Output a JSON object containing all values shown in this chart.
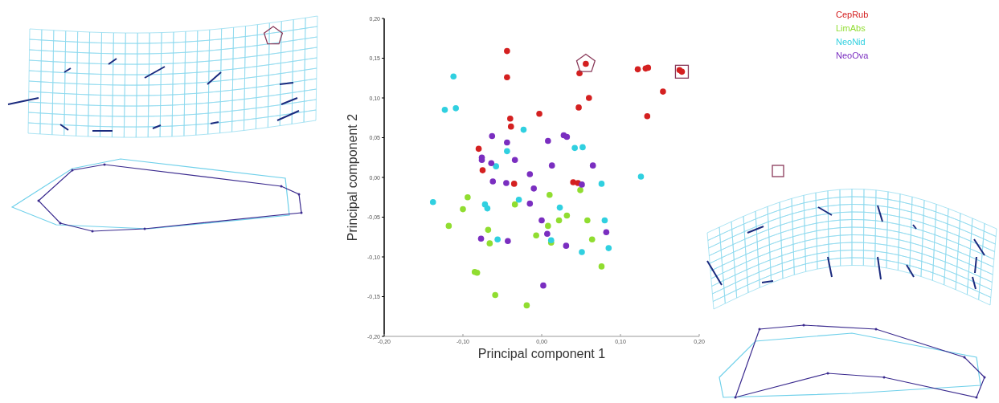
{
  "chart_data": {
    "type": "scatter",
    "xlabel": "Principal component 1",
    "ylabel": "Principal component 2",
    "xlim": [
      -0.2,
      0.2
    ],
    "ylim": [
      -0.2,
      0.2
    ],
    "xticks": [
      {
        "value": -0.2,
        "label": "-0,20"
      },
      {
        "value": -0.1,
        "label": "-0,10"
      },
      {
        "value": 0,
        "label": "0,00"
      },
      {
        "value": 0.1,
        "label": "0,10"
      },
      {
        "value": 0.2,
        "label": "0,20"
      }
    ],
    "yticks": [
      {
        "value": -0.2,
        "label": "-0,20"
      },
      {
        "value": -0.15,
        "label": "-0,15"
      },
      {
        "value": -0.1,
        "label": "-0,10"
      },
      {
        "value": -0.05,
        "label": "-0,05"
      },
      {
        "value": 0,
        "label": "0,00"
      },
      {
        "value": 0.05,
        "label": "0,05"
      },
      {
        "value": 0.1,
        "label": "0,10"
      },
      {
        "value": 0.15,
        "label": "0,15"
      },
      {
        "value": 0.2,
        "label": "0,20"
      }
    ],
    "grid": false,
    "legend": "top right",
    "marker": "circle",
    "series": [
      {
        "name": "CepRub",
        "color": "#d42020",
        "x": [
          0.056,
          0.178,
          -0.044,
          -0.044,
          0.048,
          0.122,
          0.132,
          0.135,
          0.175,
          0.154,
          0.06,
          0.047,
          0.134,
          -0.003,
          -0.04,
          -0.039,
          -0.08,
          -0.075,
          -0.035,
          0.04,
          0.046
        ],
        "values": [
          0.143,
          0.133,
          0.159,
          0.126,
          0.131,
          0.136,
          0.137,
          0.138,
          0.135,
          0.108,
          0.1,
          0.088,
          0.077,
          0.08,
          0.074,
          0.064,
          0.036,
          0.009,
          -0.008,
          -0.006,
          -0.007
        ]
      },
      {
        "name": "LimAbs",
        "color": "#90dd30",
        "x": [
          -0.094,
          -0.1,
          -0.118,
          -0.068,
          -0.066,
          -0.034,
          0.01,
          0.049,
          0.008,
          0.022,
          0.032,
          0.058,
          -0.007,
          0.012,
          0.064,
          0.076,
          -0.085,
          -0.082,
          -0.059,
          -0.019
        ],
        "values": [
          -0.025,
          -0.04,
          -0.061,
          -0.066,
          -0.083,
          -0.034,
          -0.022,
          -0.016,
          -0.061,
          -0.054,
          -0.048,
          -0.054,
          -0.073,
          -0.082,
          -0.078,
          -0.112,
          -0.119,
          -0.12,
          -0.148,
          -0.161
        ]
      },
      {
        "name": "NeoNid",
        "color": "#30d0e0",
        "x": [
          -0.112,
          -0.123,
          -0.109,
          -0.023,
          -0.044,
          0.042,
          0.052,
          -0.058,
          0.126,
          0.076,
          -0.138,
          -0.072,
          -0.069,
          -0.029,
          0.023,
          0.08,
          -0.056,
          0.012,
          0.051,
          0.085
        ],
        "values": [
          0.127,
          0.085,
          0.087,
          0.06,
          0.033,
          0.037,
          0.038,
          0.014,
          0.001,
          -0.008,
          -0.031,
          -0.034,
          -0.039,
          -0.028,
          -0.038,
          -0.054,
          -0.078,
          -0.079,
          -0.094,
          -0.089
        ]
      },
      {
        "name": "NeoOva",
        "color": "#7a2ec0",
        "x": [
          -0.063,
          -0.044,
          0.008,
          0.028,
          0.032,
          -0.076,
          -0.076,
          -0.064,
          -0.034,
          0.013,
          0.065,
          -0.015,
          -0.062,
          -0.045,
          -0.01,
          0.051,
          -0.015,
          0,
          0.007,
          0.082,
          -0.077,
          -0.043,
          0.031,
          0.002
        ],
        "values": [
          0.052,
          0.044,
          0.046,
          0.053,
          0.051,
          0.025,
          0.022,
          0.018,
          0.022,
          0.015,
          0.015,
          0.004,
          -0.005,
          -0.007,
          -0.014,
          -0.009,
          -0.033,
          -0.054,
          -0.071,
          -0.069,
          -0.077,
          -0.08,
          -0.086,
          -0.136
        ]
      }
    ]
  }
}
